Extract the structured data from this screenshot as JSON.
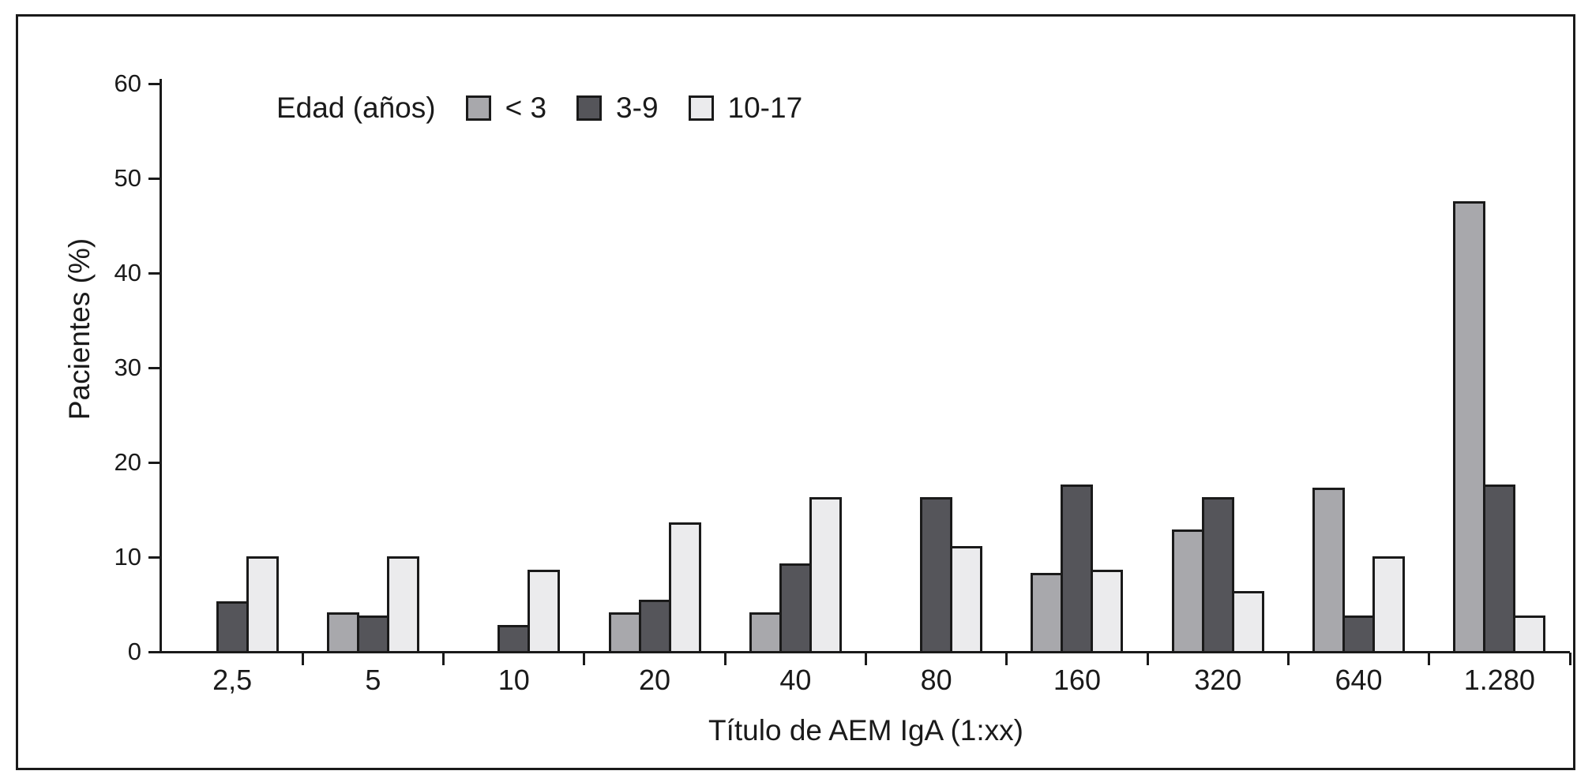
{
  "chart_data": {
    "type": "bar",
    "title": "",
    "xlabel": "Título de AEM IgA (1:xx)",
    "ylabel": "Pacientes (%)",
    "legend_title": "Edad (años)",
    "legend_position": "top",
    "grid": false,
    "ylim": [
      0,
      60
    ],
    "yticks": [
      0,
      10,
      20,
      30,
      40,
      50,
      60
    ],
    "categories": [
      "2,5",
      "5",
      "10",
      "20",
      "40",
      "80",
      "160",
      "320",
      "640",
      "1.280"
    ],
    "series": [
      {
        "name": "< 3",
        "color": "#a8a8ac",
        "values": [
          0,
          4.2,
          0,
          4.2,
          4.2,
          0,
          8.3,
          12.9,
          17.3,
          47.6
        ]
      },
      {
        "name": "3-9",
        "color": "#55555a",
        "values": [
          5.3,
          3.8,
          2.8,
          5.5,
          9.3,
          16.3,
          17.7,
          16.3,
          3.8,
          17.7
        ]
      },
      {
        "name": "10-17",
        "color": "#ebebed",
        "values": [
          10.1,
          10.1,
          8.7,
          13.7,
          16.3,
          11.2,
          8.7,
          6.4,
          10.1,
          3.8
        ]
      }
    ],
    "axis_color": "#1a1a1a"
  }
}
